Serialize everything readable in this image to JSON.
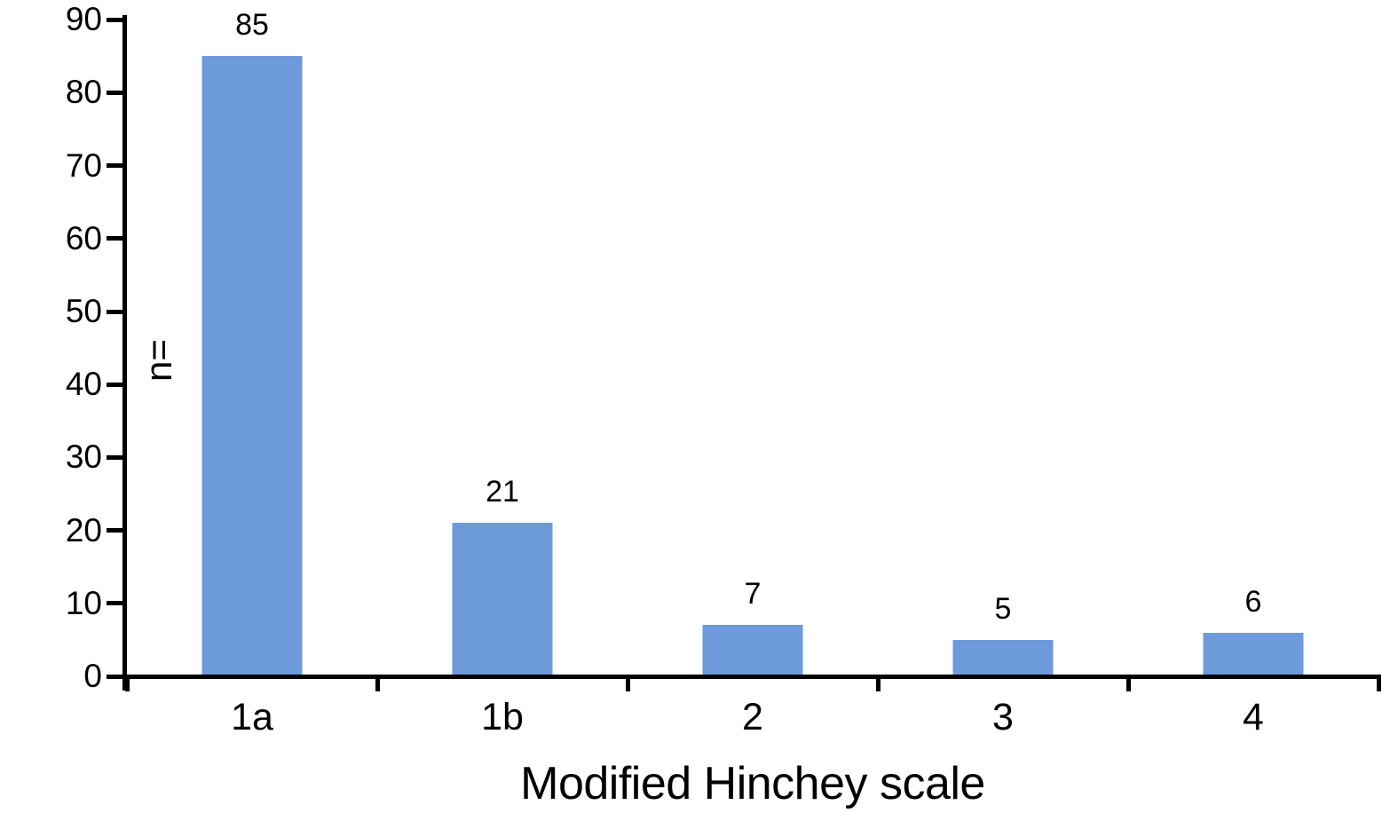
{
  "chart_data": {
    "type": "bar",
    "categories": [
      "1a",
      "1b",
      "2",
      "3",
      "4"
    ],
    "values": [
      85,
      21,
      7,
      5,
      6
    ],
    "bar_value_labels": [
      "85",
      "21",
      "7",
      "5",
      "6"
    ],
    "title": "",
    "xlabel": "Modified Hinchey scale",
    "ylabel": "n=",
    "ylim": [
      0,
      90
    ],
    "ytick_step": 10,
    "yticks": [
      0,
      10,
      20,
      30,
      40,
      50,
      60,
      70,
      80,
      90
    ],
    "grid": false,
    "legend_position": "none",
    "value_labels_shown": true,
    "colors": {
      "bar": "#6C9ADB",
      "axis": "#000000",
      "text": "#000000",
      "background": "#ffffff"
    }
  }
}
